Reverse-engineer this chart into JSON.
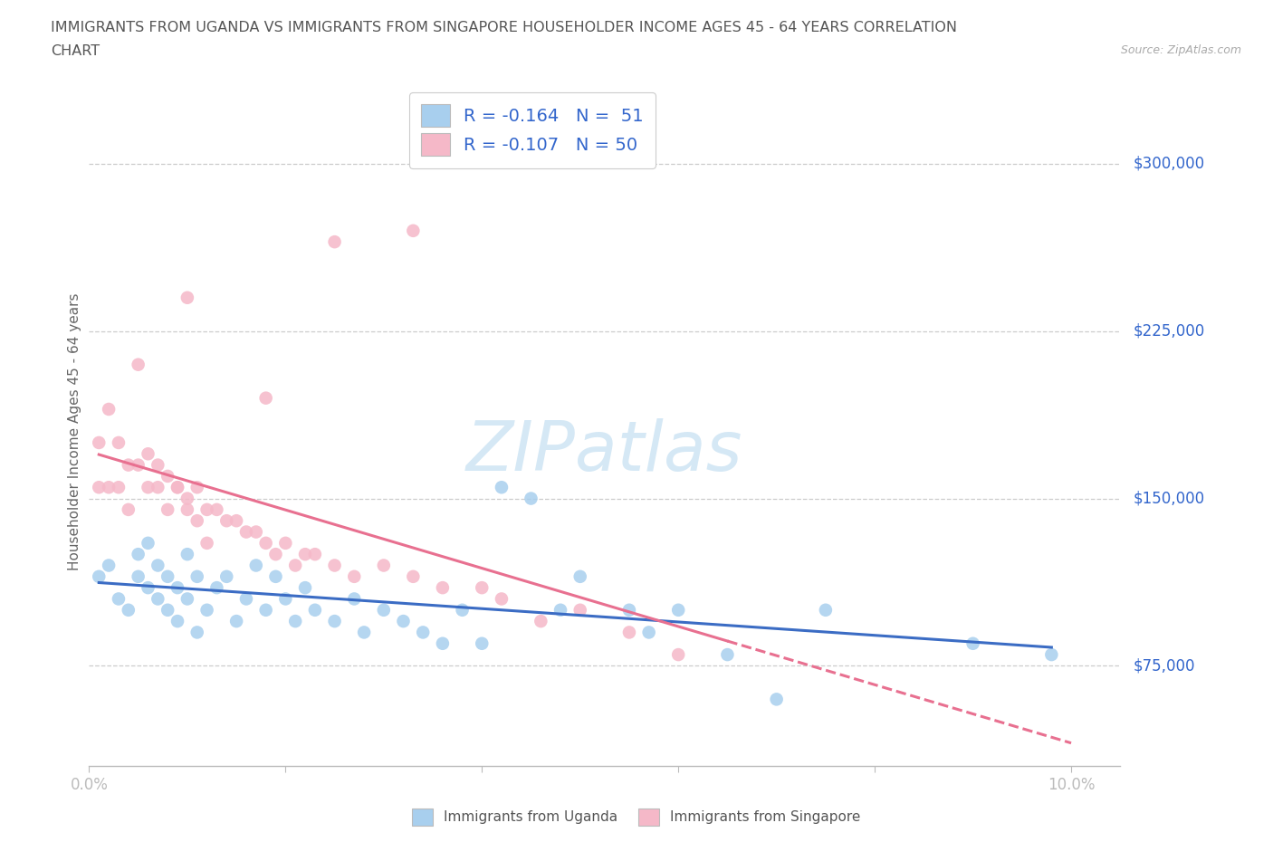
{
  "title_line1": "IMMIGRANTS FROM UGANDA VS IMMIGRANTS FROM SINGAPORE HOUSEHOLDER INCOME AGES 45 - 64 YEARS CORRELATION",
  "title_line2": "CHART",
  "source": "Source: ZipAtlas.com",
  "ylabel": "Householder Income Ages 45 - 64 years",
  "xlim": [
    0.0,
    0.105
  ],
  "ylim": [
    30000,
    330000
  ],
  "xtick_positions": [
    0.0,
    0.02,
    0.04,
    0.06,
    0.08,
    0.1
  ],
  "xtick_labels": [
    "0.0%",
    "",
    "",
    "",
    "",
    "10.0%"
  ],
  "ytick_values": [
    75000,
    150000,
    225000,
    300000
  ],
  "ytick_labels": [
    "$75,000",
    "$150,000",
    "$225,000",
    "$300,000"
  ],
  "legend_label1": "R = -0.164   N =  51",
  "legend_label2": "R = -0.107   N = 50",
  "legend_series1": "Immigrants from Uganda",
  "legend_series2": "Immigrants from Singapore",
  "color_uganda": "#A8CFEE",
  "color_singapore": "#F5B8C8",
  "line_color_uganda": "#3B6CC4",
  "line_color_singapore": "#E87090",
  "background_color": "#FFFFFF",
  "grid_color": "#CCCCCC",
  "title_color": "#555555",
  "axis_label_color": "#666666",
  "tick_label_color": "#3366CC",
  "uganda_x": [
    0.001,
    0.002,
    0.003,
    0.004,
    0.005,
    0.005,
    0.006,
    0.006,
    0.007,
    0.007,
    0.008,
    0.008,
    0.009,
    0.009,
    0.01,
    0.01,
    0.011,
    0.011,
    0.012,
    0.013,
    0.014,
    0.015,
    0.016,
    0.017,
    0.018,
    0.019,
    0.02,
    0.021,
    0.022,
    0.023,
    0.025,
    0.027,
    0.028,
    0.03,
    0.032,
    0.034,
    0.036,
    0.038,
    0.04,
    0.042,
    0.045,
    0.048,
    0.05,
    0.055,
    0.057,
    0.06,
    0.065,
    0.07,
    0.075,
    0.09,
    0.098
  ],
  "uganda_y": [
    115000,
    120000,
    105000,
    100000,
    115000,
    125000,
    110000,
    130000,
    105000,
    120000,
    115000,
    100000,
    110000,
    95000,
    125000,
    105000,
    115000,
    90000,
    100000,
    110000,
    115000,
    95000,
    105000,
    120000,
    100000,
    115000,
    105000,
    95000,
    110000,
    100000,
    95000,
    105000,
    90000,
    100000,
    95000,
    90000,
    85000,
    100000,
    85000,
    155000,
    150000,
    100000,
    115000,
    100000,
    90000,
    100000,
    80000,
    60000,
    100000,
    85000,
    80000
  ],
  "singapore_x": [
    0.001,
    0.001,
    0.002,
    0.002,
    0.003,
    0.003,
    0.004,
    0.004,
    0.005,
    0.005,
    0.006,
    0.006,
    0.007,
    0.007,
    0.008,
    0.008,
    0.009,
    0.009,
    0.01,
    0.01,
    0.011,
    0.011,
    0.012,
    0.012,
    0.013,
    0.014,
    0.015,
    0.016,
    0.017,
    0.018,
    0.019,
    0.02,
    0.021,
    0.022,
    0.023,
    0.025,
    0.027,
    0.03,
    0.033,
    0.036,
    0.04,
    0.042,
    0.046,
    0.05,
    0.055,
    0.06,
    0.033,
    0.025,
    0.018,
    0.01
  ],
  "singapore_y": [
    175000,
    155000,
    190000,
    155000,
    175000,
    155000,
    165000,
    145000,
    210000,
    165000,
    170000,
    155000,
    165000,
    155000,
    160000,
    145000,
    155000,
    155000,
    150000,
    145000,
    155000,
    140000,
    145000,
    130000,
    145000,
    140000,
    140000,
    135000,
    135000,
    130000,
    125000,
    130000,
    120000,
    125000,
    125000,
    120000,
    115000,
    120000,
    115000,
    110000,
    110000,
    105000,
    95000,
    100000,
    90000,
    80000,
    270000,
    265000,
    195000,
    240000
  ],
  "watermark_text": "ZIPatlas",
  "watermark_color": "#D5E8F5"
}
